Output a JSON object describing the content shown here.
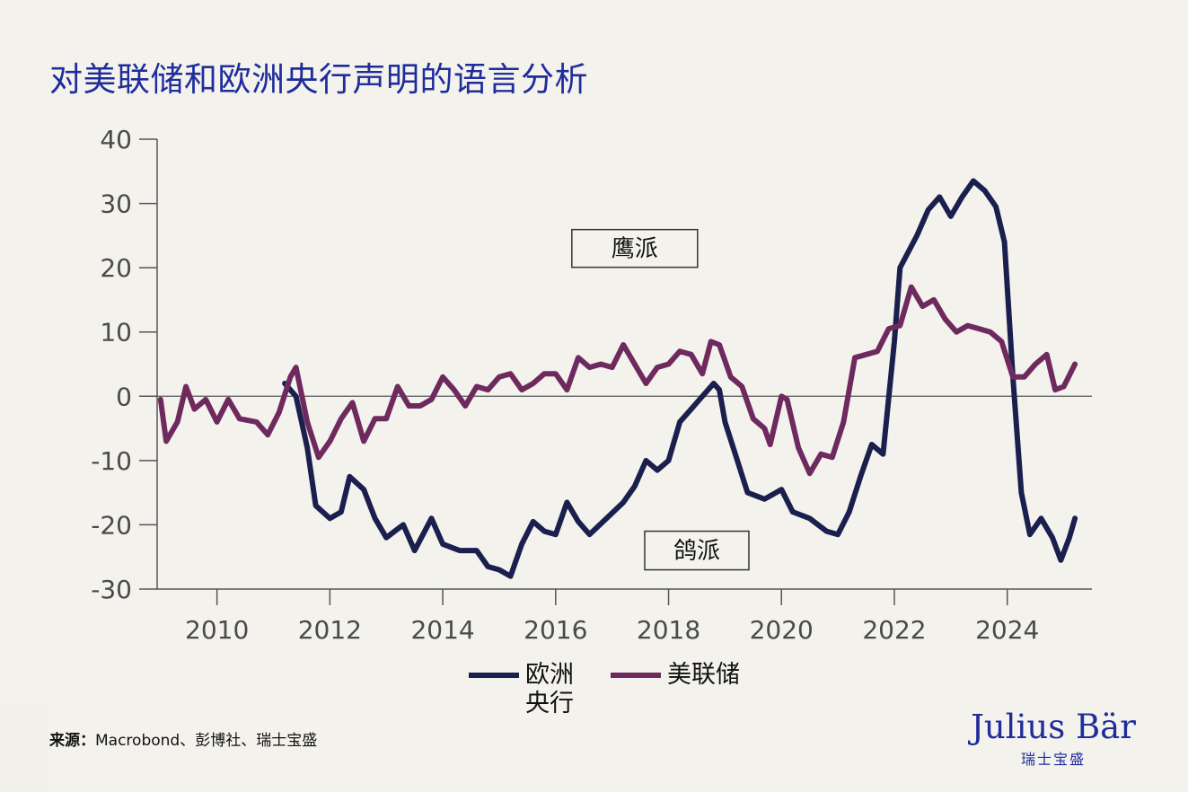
{
  "title": "对美联储和欧洲央行声明的语言分析",
  "source": {
    "label": "来源：",
    "text": "Macrobond、彭博社、瑞士宝盛"
  },
  "logo": {
    "name": "Julius Bär",
    "sub": "瑞士宝盛"
  },
  "chart_data": {
    "type": "line",
    "title": "对美联储和欧洲央行声明的语言分析",
    "xlabel": "",
    "ylabel": "",
    "xlim": [
      2008.94,
      2025.5
    ],
    "ylim": [
      -30,
      40
    ],
    "x_ticks": [
      2010,
      2012,
      2014,
      2016,
      2018,
      2020,
      2022,
      2024
    ],
    "x_tick_labels": [
      "2010",
      "2012",
      "2014",
      "2016",
      "2018",
      "2020",
      "2022",
      "2024"
    ],
    "y_ticks": [
      40,
      30,
      20,
      10,
      0,
      -10,
      -20,
      -30
    ],
    "y_tick_labels": [
      "40",
      "30",
      "20",
      "10",
      "0",
      "-10",
      "-20",
      "-30"
    ],
    "grid": false,
    "zero_line": true,
    "legend_position": "bottom-center",
    "annotations": [
      {
        "text": "鹰派",
        "x": 2017.4,
        "y": 23
      },
      {
        "text": "鸽派",
        "x": 2018.5,
        "y": -24
      }
    ],
    "series": [
      {
        "name": "欧洲央行",
        "color": "#1a1f4e",
        "points": [
          [
            2011.2,
            2
          ],
          [
            2011.4,
            0
          ],
          [
            2011.6,
            -8
          ],
          [
            2011.75,
            -17
          ],
          [
            2012.0,
            -19
          ],
          [
            2012.2,
            -18
          ],
          [
            2012.35,
            -12.5
          ],
          [
            2012.6,
            -14.5
          ],
          [
            2012.8,
            -19
          ],
          [
            2013.0,
            -22
          ],
          [
            2013.3,
            -20
          ],
          [
            2013.5,
            -24
          ],
          [
            2013.8,
            -19
          ],
          [
            2014.0,
            -23
          ],
          [
            2014.3,
            -24
          ],
          [
            2014.6,
            -24
          ],
          [
            2014.8,
            -26.5
          ],
          [
            2015.0,
            -27
          ],
          [
            2015.2,
            -28
          ],
          [
            2015.4,
            -23
          ],
          [
            2015.6,
            -19.5
          ],
          [
            2015.8,
            -21
          ],
          [
            2016.0,
            -21.5
          ],
          [
            2016.2,
            -16.5
          ],
          [
            2016.4,
            -19.5
          ],
          [
            2016.6,
            -21.5
          ],
          [
            2016.9,
            -19
          ],
          [
            2017.2,
            -16.5
          ],
          [
            2017.4,
            -14
          ],
          [
            2017.6,
            -10
          ],
          [
            2017.8,
            -11.5
          ],
          [
            2018.0,
            -10
          ],
          [
            2018.2,
            -4
          ],
          [
            2018.4,
            -2
          ],
          [
            2018.6,
            0
          ],
          [
            2018.8,
            2
          ],
          [
            2018.9,
            1
          ],
          [
            2019.0,
            -4
          ],
          [
            2019.2,
            -9.5
          ],
          [
            2019.4,
            -15
          ],
          [
            2019.7,
            -16
          ],
          [
            2020.0,
            -14.5
          ],
          [
            2020.2,
            -18
          ],
          [
            2020.5,
            -19
          ],
          [
            2020.8,
            -21
          ],
          [
            2021.0,
            -21.5
          ],
          [
            2021.2,
            -18
          ],
          [
            2021.4,
            -12.5
          ],
          [
            2021.6,
            -7.5
          ],
          [
            2021.8,
            -9
          ],
          [
            2022.0,
            8.5
          ],
          [
            2022.1,
            20
          ],
          [
            2022.4,
            25
          ],
          [
            2022.6,
            29
          ],
          [
            2022.8,
            31
          ],
          [
            2023.0,
            28
          ],
          [
            2023.2,
            31
          ],
          [
            2023.4,
            33.5
          ],
          [
            2023.6,
            32
          ],
          [
            2023.8,
            29.5
          ],
          [
            2023.95,
            24
          ],
          [
            2024.1,
            3
          ],
          [
            2024.25,
            -15
          ],
          [
            2024.4,
            -21.5
          ],
          [
            2024.6,
            -19
          ],
          [
            2024.8,
            -22
          ],
          [
            2024.95,
            -25.5
          ],
          [
            2025.1,
            -22
          ],
          [
            2025.2,
            -19
          ]
        ]
      },
      {
        "name": "美联储",
        "color": "#6e2a5e",
        "points": [
          [
            2009.0,
            -0.5
          ],
          [
            2009.1,
            -7
          ],
          [
            2009.3,
            -4
          ],
          [
            2009.45,
            1.5
          ],
          [
            2009.6,
            -2
          ],
          [
            2009.8,
            -0.5
          ],
          [
            2010.0,
            -4
          ],
          [
            2010.2,
            -0.5
          ],
          [
            2010.4,
            -3.5
          ],
          [
            2010.7,
            -4
          ],
          [
            2010.9,
            -6
          ],
          [
            2011.1,
            -2.5
          ],
          [
            2011.3,
            3
          ],
          [
            2011.4,
            4.5
          ],
          [
            2011.6,
            -4
          ],
          [
            2011.8,
            -9.5
          ],
          [
            2012.0,
            -7
          ],
          [
            2012.2,
            -3.5
          ],
          [
            2012.4,
            -1
          ],
          [
            2012.6,
            -7
          ],
          [
            2012.8,
            -3.5
          ],
          [
            2013.0,
            -3.5
          ],
          [
            2013.2,
            1.5
          ],
          [
            2013.4,
            -1.5
          ],
          [
            2013.6,
            -1.5
          ],
          [
            2013.8,
            -0.5
          ],
          [
            2014.0,
            3
          ],
          [
            2014.2,
            1
          ],
          [
            2014.4,
            -1.5
          ],
          [
            2014.6,
            1.5
          ],
          [
            2014.8,
            1
          ],
          [
            2015.0,
            3
          ],
          [
            2015.2,
            3.5
          ],
          [
            2015.4,
            1
          ],
          [
            2015.6,
            2
          ],
          [
            2015.8,
            3.5
          ],
          [
            2016.0,
            3.5
          ],
          [
            2016.2,
            1
          ],
          [
            2016.4,
            6
          ],
          [
            2016.6,
            4.5
          ],
          [
            2016.8,
            5
          ],
          [
            2017.0,
            4.5
          ],
          [
            2017.2,
            8
          ],
          [
            2017.4,
            5
          ],
          [
            2017.6,
            2
          ],
          [
            2017.8,
            4.5
          ],
          [
            2018.0,
            5
          ],
          [
            2018.2,
            7
          ],
          [
            2018.4,
            6.5
          ],
          [
            2018.6,
            3.5
          ],
          [
            2018.75,
            8.5
          ],
          [
            2018.9,
            8
          ],
          [
            2019.1,
            3
          ],
          [
            2019.3,
            1.5
          ],
          [
            2019.5,
            -3.5
          ],
          [
            2019.7,
            -5
          ],
          [
            2019.8,
            -7.5
          ],
          [
            2020.0,
            0
          ],
          [
            2020.1,
            -0.5
          ],
          [
            2020.3,
            -8
          ],
          [
            2020.5,
            -12
          ],
          [
            2020.7,
            -9
          ],
          [
            2020.9,
            -9.5
          ],
          [
            2021.1,
            -4
          ],
          [
            2021.3,
            6
          ],
          [
            2021.5,
            6.5
          ],
          [
            2021.7,
            7
          ],
          [
            2021.9,
            10.5
          ],
          [
            2022.1,
            11
          ],
          [
            2022.3,
            17
          ],
          [
            2022.5,
            14
          ],
          [
            2022.7,
            15
          ],
          [
            2022.9,
            12
          ],
          [
            2023.1,
            10
          ],
          [
            2023.3,
            11
          ],
          [
            2023.5,
            10.5
          ],
          [
            2023.7,
            10
          ],
          [
            2023.9,
            8.5
          ],
          [
            2024.1,
            3
          ],
          [
            2024.3,
            3
          ],
          [
            2024.5,
            5
          ],
          [
            2024.7,
            6.5
          ],
          [
            2024.85,
            1
          ],
          [
            2025.0,
            1.5
          ],
          [
            2025.2,
            5
          ]
        ]
      }
    ]
  }
}
